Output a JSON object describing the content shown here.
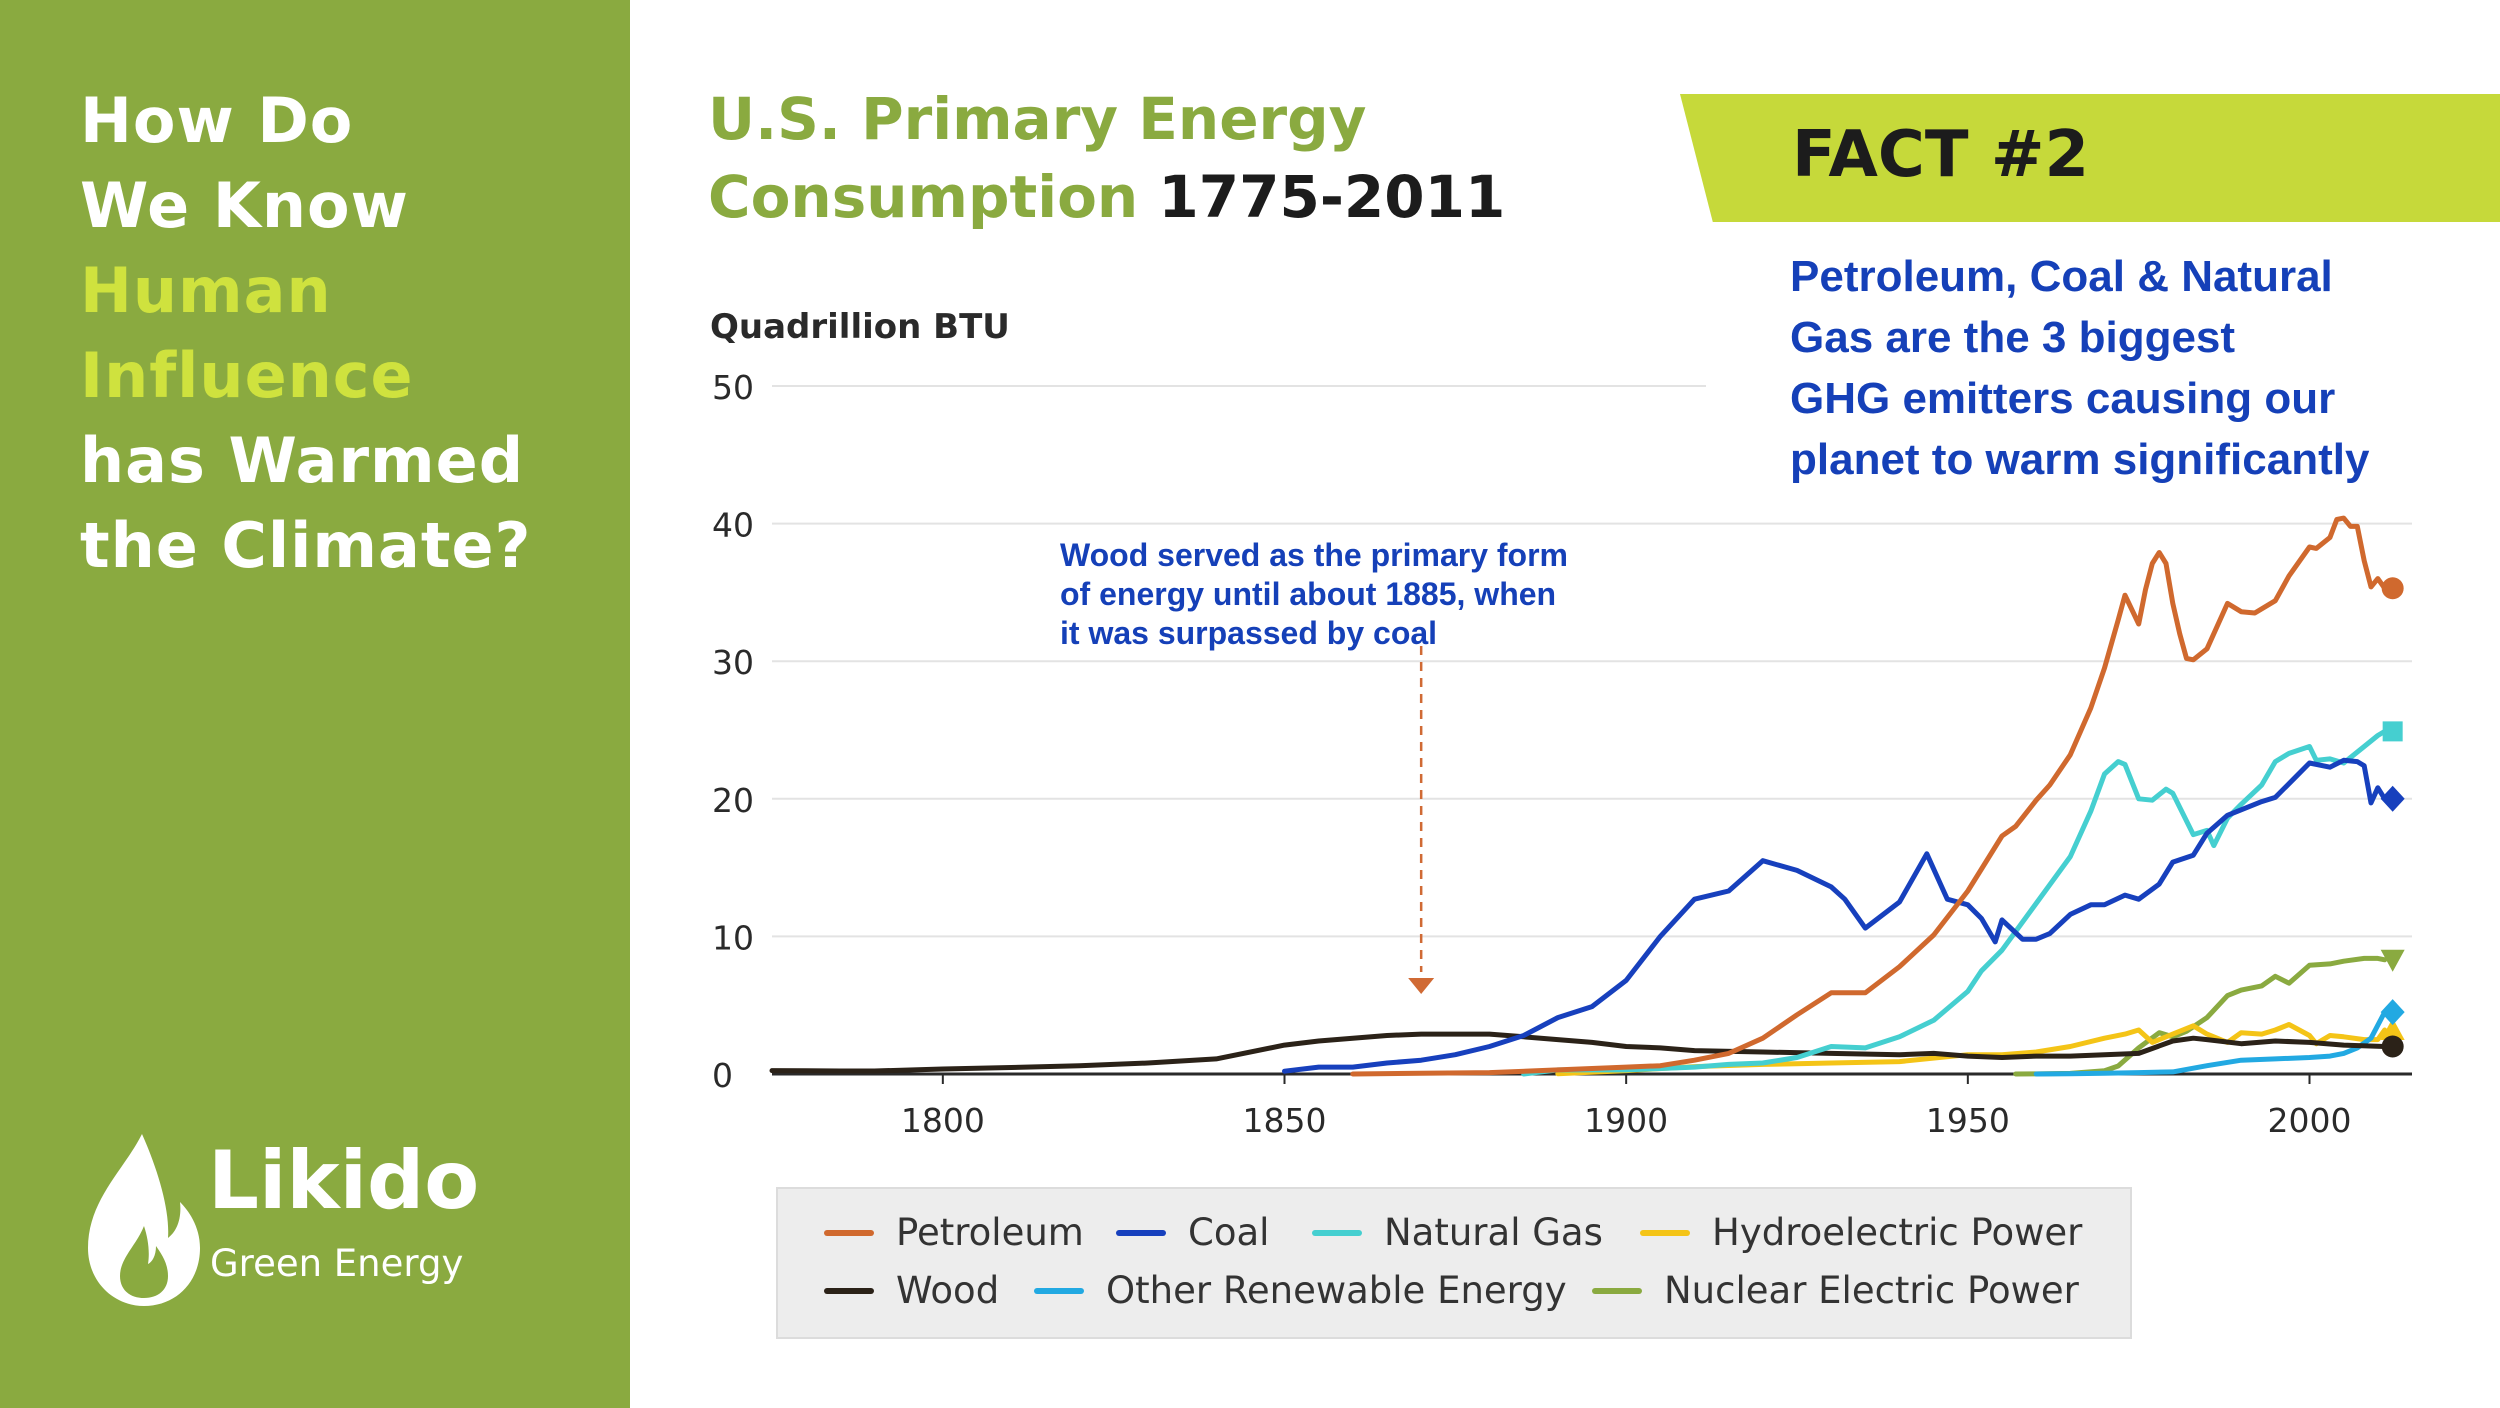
{
  "sidebar": {
    "title_lines": [
      "How Do",
      "We Know",
      "Human",
      "Influence",
      "has Warmed",
      "the Climate?"
    ],
    "logo": {
      "name": "Likido",
      "subtitle": "Green Energy",
      "icon": "flame-icon"
    }
  },
  "header": {
    "title_part1": "U.S. Primary Energy",
    "title_part2": "Consumption",
    "title_years": "1775-2011"
  },
  "fact": {
    "label": "FACT #2",
    "text_lines": [
      "Petroleum, Coal & Natural",
      "Gas are the 3 biggest",
      "GHG emitters causing our",
      "planet to warm significantly"
    ]
  },
  "colors": {
    "sidebar_green": "#8aaa40",
    "highlight_lime": "#cfe23e",
    "fact_band": "#c6d93a",
    "fact_blue": "#1540b8",
    "annotation_arrow": "#d06a34"
  },
  "chart_data": {
    "type": "line",
    "ylabel": "Quadrillion BTU",
    "ylim": [
      0,
      50
    ],
    "xlim": [
      1775,
      2015
    ],
    "yticks": [
      0,
      10,
      20,
      30,
      40,
      50
    ],
    "xticks": [
      1800,
      1850,
      1900,
      1950,
      2000
    ],
    "grid": true,
    "annotation": {
      "text_lines": [
        "Wood served as the primary form",
        "of energy until about 1885, when",
        "it was surpassed by coal"
      ],
      "arrow_x": 1870
    },
    "series": [
      {
        "name": "Petroleum",
        "color": "#d0692e",
        "marker": "circle",
        "x": [
          1860,
          1870,
          1880,
          1890,
          1900,
          1905,
          1910,
          1915,
          1920,
          1925,
          1930,
          1935,
          1940,
          1945,
          1950,
          1952,
          1955,
          1957,
          1960,
          1962,
          1965,
          1968,
          1970,
          1972,
          1973,
          1975,
          1976,
          1977,
          1978,
          1979,
          1980,
          1981,
          1982,
          1983,
          1985,
          1988,
          1990,
          1992,
          1995,
          1997,
          2000,
          2001,
          2003,
          2004,
          2005,
          2006,
          2007,
          2008,
          2009,
          2010,
          2011
        ],
        "values": [
          0,
          0.05,
          0.1,
          0.3,
          0.5,
          0.6,
          1.0,
          1.5,
          2.6,
          4.3,
          5.9,
          5.9,
          7.8,
          10.1,
          13.3,
          14.9,
          17.3,
          18.0,
          19.9,
          21.0,
          23.2,
          26.6,
          29.5,
          33.0,
          34.8,
          32.7,
          35.2,
          37.1,
          37.9,
          37.1,
          34.2,
          32.0,
          30.2,
          30.1,
          30.9,
          34.2,
          33.6,
          33.5,
          34.4,
          36.2,
          38.3,
          38.2,
          39.0,
          40.3,
          40.4,
          39.8,
          39.8,
          37.3,
          35.4,
          36.0,
          35.3
        ]
      },
      {
        "name": "Coal",
        "color": "#1740bd",
        "marker": "diamond",
        "x": [
          1850,
          1855,
          1860,
          1865,
          1870,
          1875,
          1880,
          1885,
          1890,
          1895,
          1900,
          1905,
          1910,
          1915,
          1920,
          1925,
          1930,
          1932,
          1935,
          1940,
          1944,
          1947,
          1950,
          1952,
          1954,
          1955,
          1958,
          1960,
          1962,
          1965,
          1968,
          1970,
          1973,
          1975,
          1978,
          1980,
          1983,
          1985,
          1988,
          1990,
          1993,
          1995,
          1998,
          2000,
          2003,
          2005,
          2007,
          2008,
          2009,
          2010,
          2011
        ],
        "values": [
          0.2,
          0.5,
          0.5,
          0.8,
          1.0,
          1.4,
          2.0,
          2.8,
          4.1,
          4.9,
          6.8,
          10.0,
          12.7,
          13.3,
          15.5,
          14.8,
          13.6,
          12.7,
          10.6,
          12.5,
          16.0,
          12.7,
          12.3,
          11.3,
          9.6,
          11.2,
          9.8,
          9.8,
          10.2,
          11.6,
          12.3,
          12.3,
          13.0,
          12.7,
          13.8,
          15.4,
          15.9,
          17.5,
          18.8,
          19.2,
          19.8,
          20.1,
          21.6,
          22.6,
          22.3,
          22.8,
          22.7,
          22.4,
          19.7,
          20.8,
          20.0
        ]
      },
      {
        "name": "Natural Gas",
        "color": "#45cfd0",
        "marker": "square",
        "x": [
          1885,
          1890,
          1900,
          1905,
          1910,
          1915,
          1920,
          1925,
          1930,
          1935,
          1940,
          1945,
          1950,
          1952,
          1955,
          1960,
          1965,
          1968,
          1970,
          1972,
          1973,
          1975,
          1977,
          1979,
          1980,
          1983,
          1985,
          1986,
          1988,
          1990,
          1993,
          1995,
          1997,
          2000,
          2001,
          2003,
          2005,
          2008,
          2010,
          2011
        ],
        "values": [
          0,
          0.3,
          0.3,
          0.4,
          0.5,
          0.7,
          0.8,
          1.2,
          2.0,
          1.9,
          2.7,
          3.9,
          6.0,
          7.5,
          9.0,
          12.4,
          15.8,
          19.1,
          21.8,
          22.7,
          22.5,
          20.0,
          19.9,
          20.7,
          20.4,
          17.4,
          17.7,
          16.6,
          18.6,
          19.6,
          21.0,
          22.7,
          23.3,
          23.8,
          22.8,
          22.9,
          22.6,
          23.8,
          24.6,
          24.9
        ]
      },
      {
        "name": "Hydroelectric Power",
        "color": "#f4c417",
        "marker": "triangle-up",
        "x": [
          1890,
          1900,
          1910,
          1920,
          1930,
          1940,
          1950,
          1955,
          1960,
          1965,
          1970,
          1973,
          1975,
          1977,
          1980,
          1983,
          1985,
          1988,
          1990,
          1993,
          1995,
          1997,
          2000,
          2001,
          2003,
          2005,
          2008,
          2010,
          2011
        ],
        "values": [
          0.02,
          0.25,
          0.54,
          0.7,
          0.8,
          0.9,
          1.4,
          1.4,
          1.6,
          2.0,
          2.6,
          2.9,
          3.2,
          2.3,
          2.9,
          3.5,
          2.9,
          2.3,
          3.0,
          2.9,
          3.2,
          3.6,
          2.8,
          2.2,
          2.8,
          2.7,
          2.5,
          2.5,
          3.2
        ]
      },
      {
        "name": "Wood",
        "color": "#2b2218",
        "marker": "circle",
        "x": [
          1775,
          1780,
          1785,
          1790,
          1800,
          1810,
          1820,
          1830,
          1840,
          1850,
          1855,
          1860,
          1865,
          1870,
          1875,
          1880,
          1885,
          1890,
          1895,
          1900,
          1905,
          1910,
          1920,
          1930,
          1940,
          1945,
          1950,
          1955,
          1960,
          1965,
          1970,
          1975,
          1980,
          1983,
          1985,
          1990,
          1995,
          2000,
          2005,
          2011
        ],
        "values": [
          0.25,
          0.23,
          0.22,
          0.22,
          0.36,
          0.47,
          0.6,
          0.8,
          1.1,
          2.1,
          2.4,
          2.6,
          2.8,
          2.9,
          2.9,
          2.9,
          2.7,
          2.5,
          2.3,
          2.0,
          1.9,
          1.7,
          1.6,
          1.5,
          1.4,
          1.5,
          1.3,
          1.2,
          1.3,
          1.3,
          1.4,
          1.5,
          2.4,
          2.6,
          2.5,
          2.2,
          2.4,
          2.3,
          2.1,
          2.0
        ]
      },
      {
        "name": "Other Renewable Energy",
        "color": "#22a9e2",
        "marker": "diamond",
        "x": [
          1960,
          1965,
          1970,
          1975,
          1980,
          1985,
          1990,
          1995,
          2000,
          2003,
          2005,
          2007,
          2009,
          2011
        ],
        "values": [
          0,
          0.02,
          0.05,
          0.1,
          0.15,
          0.6,
          1.0,
          1.1,
          1.2,
          1.3,
          1.5,
          1.9,
          2.6,
          4.5
        ]
      },
      {
        "name": "Nuclear Electric Power",
        "color": "#8aaa40",
        "marker": "triangle-down",
        "x": [
          1957,
          1960,
          1965,
          1970,
          1972,
          1975,
          1978,
          1980,
          1982,
          1985,
          1988,
          1990,
          1993,
          1995,
          1997,
          2000,
          2003,
          2005,
          2008,
          2010,
          2011
        ],
        "values": [
          0,
          0.01,
          0.04,
          0.24,
          0.58,
          1.9,
          3.0,
          2.7,
          3.1,
          4.1,
          5.7,
          6.1,
          6.4,
          7.1,
          6.6,
          7.9,
          8.0,
          8.2,
          8.4,
          8.4,
          8.3
        ]
      }
    ]
  }
}
